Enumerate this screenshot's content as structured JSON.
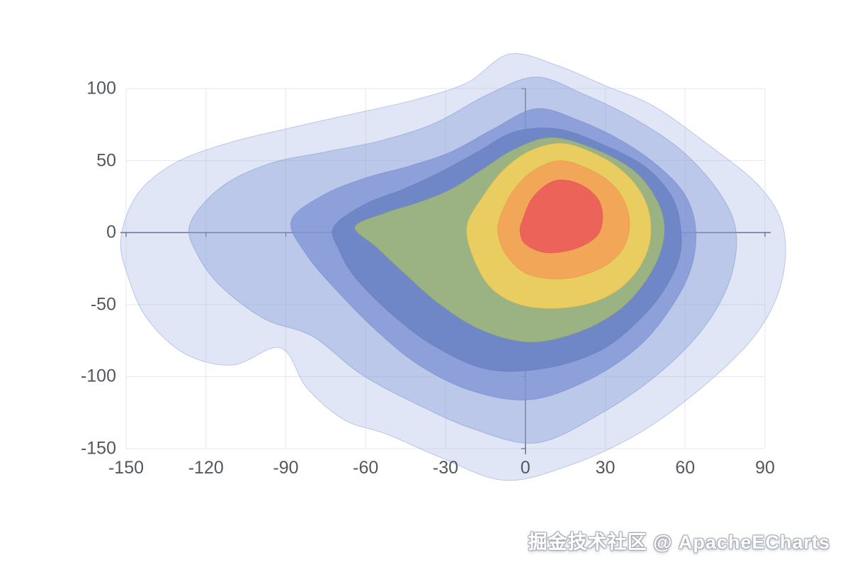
{
  "watermark": "掘金技术社区 @ ApacheECharts",
  "chart_data": {
    "type": "heatmap",
    "subtype": "density-contour",
    "title": "",
    "xlabel": "",
    "ylabel": "",
    "xlim": [
      -150,
      90
    ],
    "ylim": [
      -150,
      100
    ],
    "x_ticks": [
      -150,
      -120,
      -90,
      -60,
      -30,
      0,
      30,
      60,
      90
    ],
    "y_ticks": [
      -150,
      -100,
      -50,
      0,
      50,
      100
    ],
    "grid": true,
    "legend": false,
    "grid_color": "#e2e7f1",
    "axis_line_color": "#454c59",
    "tick_label_color": "#53575f",
    "levels": [
      {
        "name": "density-level-1",
        "color": "#9aabe0",
        "stroke": "#8fa3dc",
        "opacity": 0.3,
        "points": [
          [
            -152,
            -5
          ],
          [
            -146,
            26
          ],
          [
            -132,
            48
          ],
          [
            -112,
            62
          ],
          [
            -90,
            72
          ],
          [
            -66,
            82
          ],
          [
            -42,
            92
          ],
          [
            -22,
            104
          ],
          [
            -6,
            124
          ],
          [
            12,
            116
          ],
          [
            30,
            102
          ],
          [
            48,
            88
          ],
          [
            68,
            62
          ],
          [
            88,
            32
          ],
          [
            97,
            2
          ],
          [
            96,
            -36
          ],
          [
            86,
            -72
          ],
          [
            66,
            -108
          ],
          [
            42,
            -140
          ],
          [
            16,
            -162
          ],
          [
            -8,
            -172
          ],
          [
            -32,
            -156
          ],
          [
            -52,
            -140
          ],
          [
            -68,
            -130
          ],
          [
            -82,
            -108
          ],
          [
            -92,
            -80
          ],
          [
            -110,
            -92
          ],
          [
            -128,
            -84
          ],
          [
            -142,
            -60
          ],
          [
            -149,
            -32
          ]
        ]
      },
      {
        "name": "density-level-2",
        "color": "#8ba0da",
        "stroke": "#7f96d2",
        "opacity": 0.42,
        "points": [
          [
            -126,
            6
          ],
          [
            -114,
            32
          ],
          [
            -96,
            48
          ],
          [
            -75,
            56
          ],
          [
            -54,
            64
          ],
          [
            -34,
            76
          ],
          [
            -14,
            96
          ],
          [
            4,
            108
          ],
          [
            22,
            96
          ],
          [
            40,
            80
          ],
          [
            58,
            58
          ],
          [
            72,
            30
          ],
          [
            79,
            2
          ],
          [
            77,
            -32
          ],
          [
            67,
            -66
          ],
          [
            50,
            -98
          ],
          [
            28,
            -126
          ],
          [
            4,
            -146
          ],
          [
            -20,
            -136
          ],
          [
            -42,
            -118
          ],
          [
            -62,
            -98
          ],
          [
            -80,
            -72
          ],
          [
            -98,
            -60
          ],
          [
            -114,
            -38
          ],
          [
            -123,
            -16
          ]
        ]
      },
      {
        "name": "density-level-3",
        "color": "#8195d3",
        "stroke": "#7389c9",
        "opacity": 0.78,
        "points": [
          [
            -88,
            8
          ],
          [
            -76,
            26
          ],
          [
            -60,
            38
          ],
          [
            -44,
            46
          ],
          [
            -28,
            56
          ],
          [
            -12,
            72
          ],
          [
            4,
            86
          ],
          [
            20,
            78
          ],
          [
            36,
            64
          ],
          [
            50,
            46
          ],
          [
            60,
            26
          ],
          [
            64,
            2
          ],
          [
            62,
            -26
          ],
          [
            54,
            -54
          ],
          [
            42,
            -80
          ],
          [
            24,
            -102
          ],
          [
            2,
            -116
          ],
          [
            -20,
            -110
          ],
          [
            -40,
            -92
          ],
          [
            -56,
            -68
          ],
          [
            -70,
            -42
          ],
          [
            -82,
            -16
          ]
        ]
      },
      {
        "name": "density-level-4",
        "color": "#6e85c6",
        "stroke": "#6379bb",
        "opacity": 0.95,
        "points": [
          [
            -72,
            4
          ],
          [
            -60,
            20
          ],
          [
            -46,
            30
          ],
          [
            -32,
            42
          ],
          [
            -18,
            56
          ],
          [
            -4,
            70
          ],
          [
            12,
            72
          ],
          [
            28,
            62
          ],
          [
            44,
            47
          ],
          [
            54,
            28
          ],
          [
            58,
            8
          ],
          [
            58,
            -16
          ],
          [
            52,
            -40
          ],
          [
            42,
            -62
          ],
          [
            28,
            -82
          ],
          [
            8,
            -94
          ],
          [
            -14,
            -95
          ],
          [
            -34,
            -79
          ],
          [
            -50,
            -57
          ],
          [
            -64,
            -31
          ],
          [
            -70,
            -12
          ]
        ]
      },
      {
        "name": "density-level-5",
        "color": "#9db47f",
        "stroke": "#8fa86e",
        "opacity": 0.96,
        "points": [
          [
            -64,
            4
          ],
          [
            -52,
            14
          ],
          [
            -40,
            21
          ],
          [
            -28,
            30
          ],
          [
            -16,
            44
          ],
          [
            -4,
            58
          ],
          [
            10,
            66
          ],
          [
            26,
            58
          ],
          [
            40,
            44
          ],
          [
            48,
            27
          ],
          [
            52,
            8
          ],
          [
            51,
            -12
          ],
          [
            45,
            -34
          ],
          [
            35,
            -54
          ],
          [
            20,
            -69
          ],
          [
            2,
            -76
          ],
          [
            -16,
            -68
          ],
          [
            -32,
            -50
          ],
          [
            -45,
            -29
          ],
          [
            -56,
            -10
          ]
        ]
      },
      {
        "name": "density-level-6",
        "color": "#ecce60",
        "stroke": "#dfbe4e",
        "opacity": 0.96,
        "points": [
          [
            -22,
            4
          ],
          [
            -16,
            25
          ],
          [
            -8,
            44
          ],
          [
            2,
            57
          ],
          [
            14,
            62
          ],
          [
            27,
            54
          ],
          [
            37,
            42
          ],
          [
            44,
            26
          ],
          [
            47,
            8
          ],
          [
            46,
            -12
          ],
          [
            40,
            -31
          ],
          [
            30,
            -45
          ],
          [
            16,
            -52
          ],
          [
            0,
            -51
          ],
          [
            -12,
            -40
          ],
          [
            -19,
            -20
          ]
        ]
      },
      {
        "name": "density-level-7",
        "color": "#f2a457",
        "stroke": "#e8954a",
        "opacity": 0.97,
        "points": [
          [
            -10,
            8
          ],
          [
            -5,
            28
          ],
          [
            3,
            43
          ],
          [
            13,
            50
          ],
          [
            24,
            44
          ],
          [
            33,
            33
          ],
          [
            38,
            18
          ],
          [
            39,
            2
          ],
          [
            36,
            -13
          ],
          [
            28,
            -25
          ],
          [
            15,
            -32
          ],
          [
            1,
            -29
          ],
          [
            -7,
            -16
          ],
          [
            -10,
            -3
          ]
        ]
      },
      {
        "name": "density-level-8",
        "color": "#eb6159",
        "stroke": "#df544e",
        "opacity": 0.97,
        "points": [
          [
            -1,
            9
          ],
          [
            3,
            25
          ],
          [
            11,
            36
          ],
          [
            20,
            34
          ],
          [
            27,
            24
          ],
          [
            29,
            11
          ],
          [
            27,
            -2
          ],
          [
            19,
            -11
          ],
          [
            8,
            -14
          ],
          [
            0,
            -8
          ],
          [
            -2,
            1
          ]
        ]
      }
    ]
  }
}
